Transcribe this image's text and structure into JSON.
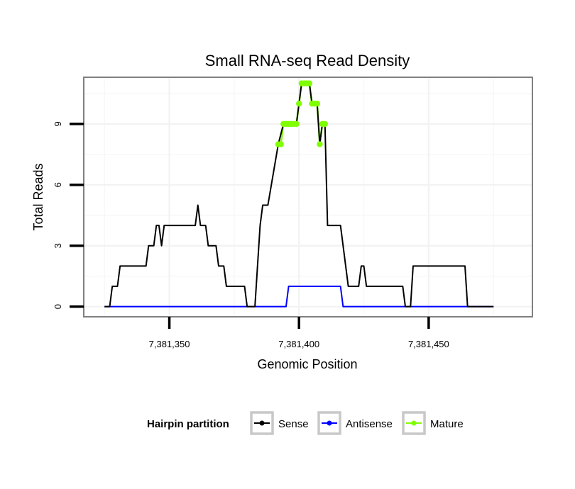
{
  "chart_data": {
    "type": "line",
    "title": "Small RNA-seq Read Density",
    "xlabel": "Genomic Position",
    "ylabel": "Total Reads",
    "xlim": [
      7381317,
      7381490
    ],
    "ylim": [
      -0.5,
      11.3
    ],
    "xticks": [
      7381350,
      7381400,
      7381450
    ],
    "xtick_labels": [
      "7,381,350",
      "7,381,400",
      "7,381,450"
    ],
    "yticks": [
      0,
      3,
      6,
      9
    ],
    "ytick_labels": [
      "0",
      "3",
      "6",
      "9"
    ],
    "grid": true,
    "legend": {
      "title": "Hairpin partition",
      "position": "bottom",
      "entries": [
        {
          "name": "Sense",
          "color": "#000000"
        },
        {
          "name": "Antisense",
          "color": "#0000ff"
        },
        {
          "name": "Mature",
          "color": "#7fff00"
        }
      ]
    },
    "series": [
      {
        "name": "Sense",
        "color": "#000000",
        "points": [
          [
            7381325,
            0
          ],
          [
            7381327,
            0
          ],
          [
            7381328,
            1
          ],
          [
            7381330,
            1
          ],
          [
            7381331,
            2
          ],
          [
            7381341,
            2
          ],
          [
            7381342,
            3
          ],
          [
            7381344,
            3
          ],
          [
            7381345,
            4
          ],
          [
            7381346,
            4
          ],
          [
            7381347,
            3
          ],
          [
            7381348,
            4
          ],
          [
            7381360,
            4
          ],
          [
            7381361,
            5
          ],
          [
            7381362,
            4
          ],
          [
            7381364,
            4
          ],
          [
            7381365,
            3
          ],
          [
            7381368,
            3
          ],
          [
            7381369,
            2
          ],
          [
            7381371,
            2
          ],
          [
            7381372,
            1
          ],
          [
            7381379,
            1
          ],
          [
            7381380,
            0
          ],
          [
            7381383,
            0
          ],
          [
            7381385,
            4
          ],
          [
            7381386,
            5
          ],
          [
            7381388,
            5
          ],
          [
            7381392,
            8
          ],
          [
            7381394,
            9
          ],
          [
            7381399,
            9
          ],
          [
            7381400,
            10
          ],
          [
            7381401,
            11
          ],
          [
            7381404,
            11
          ],
          [
            7381405,
            10
          ],
          [
            7381407,
            10
          ],
          [
            7381408,
            8
          ],
          [
            7381409,
            9
          ],
          [
            7381410,
            9
          ],
          [
            7381411,
            4
          ],
          [
            7381416,
            4
          ],
          [
            7381417,
            3
          ],
          [
            7381418,
            2
          ],
          [
            7381419,
            1
          ],
          [
            7381423,
            1
          ],
          [
            7381424,
            2
          ],
          [
            7381425,
            2
          ],
          [
            7381426,
            1
          ],
          [
            7381440,
            1
          ],
          [
            7381441,
            0
          ],
          [
            7381443,
            0
          ],
          [
            7381444,
            2
          ],
          [
            7381464,
            2
          ],
          [
            7381465,
            0
          ],
          [
            7381475,
            0
          ]
        ]
      },
      {
        "name": "Antisense",
        "color": "#0000ff",
        "points": [
          [
            7381325,
            0
          ],
          [
            7381395,
            0
          ],
          [
            7381396,
            1
          ],
          [
            7381416,
            1
          ],
          [
            7381417,
            0
          ],
          [
            7381475,
            0
          ]
        ]
      },
      {
        "name": "Mature",
        "color": "#7fff00",
        "points": [
          [
            7381392,
            8
          ],
          [
            7381393,
            8
          ],
          [
            7381394,
            9
          ],
          [
            7381395,
            9
          ],
          [
            7381396,
            9
          ],
          [
            7381397,
            9
          ],
          [
            7381398,
            9
          ],
          [
            7381399,
            9
          ],
          [
            7381400,
            10
          ],
          [
            7381401,
            11
          ],
          [
            7381402,
            11
          ],
          [
            7381403,
            11
          ],
          [
            7381404,
            11
          ],
          [
            7381405,
            10
          ],
          [
            7381406,
            10
          ],
          [
            7381407,
            10
          ],
          [
            7381408,
            8
          ],
          [
            7381409,
            9
          ],
          [
            7381410,
            9
          ]
        ]
      }
    ]
  }
}
